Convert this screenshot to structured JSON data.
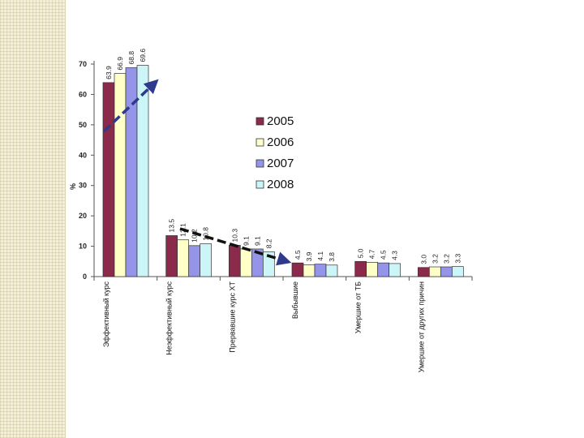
{
  "chart_data": {
    "type": "bar",
    "ylabel": "%",
    "ylim": [
      0,
      70
    ],
    "yticks": [
      0,
      10,
      20,
      30,
      40,
      50,
      60,
      70
    ],
    "legend_position": "right",
    "categories": [
      "Эффективный курс",
      "Неэффективный курс",
      "Прервавшие курс ХТ",
      "Выбывшие",
      "Умершие от ТБ",
      "Умершие от других причин"
    ],
    "series": [
      {
        "name": "2005",
        "color": "#8b2a4b",
        "values": [
          63.9,
          13.5,
          10.3,
          4.5,
          5.0,
          3.0
        ]
      },
      {
        "name": "2006",
        "color": "#ffffc8",
        "values": [
          66.9,
          12.1,
          9.1,
          3.9,
          4.7,
          3.2
        ]
      },
      {
        "name": "2007",
        "color": "#9494e8",
        "values": [
          68.8,
          10.2,
          9.1,
          4.1,
          4.5,
          3.2
        ]
      },
      {
        "name": "2008",
        "color": "#ccf5f8",
        "values": [
          69.6,
          10.8,
          8.2,
          3.8,
          4.3,
          3.3
        ]
      }
    ],
    "value_labels": [
      [
        "63.9",
        "66.9",
        "68.8",
        "69.6"
      ],
      [
        "13.5",
        "12.1",
        "10.2",
        "10.8"
      ],
      [
        "10.3",
        "9.1",
        "9.1",
        "8.2"
      ],
      [
        "4.5",
        "3.9",
        "4.1",
        "3.8"
      ],
      [
        "5.0",
        "4.7",
        "4.5",
        "4.3"
      ],
      [
        "3.0",
        "3.2",
        "3.2",
        "3.3"
      ]
    ],
    "grid": false,
    "trend_arrow_color": "#2e3a8c"
  }
}
